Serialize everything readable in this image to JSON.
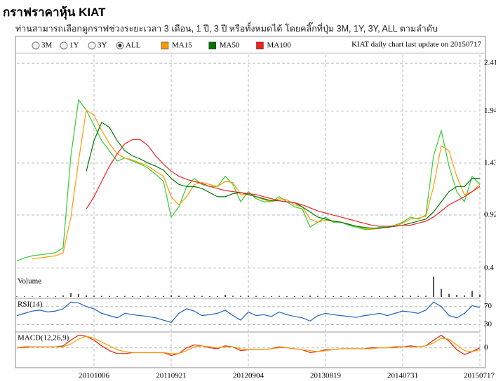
{
  "header": {
    "title": "กราฟราคาหุ้น KIAT",
    "subtitle": "ท่านสามารถเลือกดูกราฟช่วงระยะเวลา 3 เดือน, 1 ปี, 3 ปี หรือทั้งหมดได้ โดยคลิ๊กที่ปุ่ม 3M, 1Y, 3Y, ALL ตามลำดับ"
  },
  "controls": {
    "ranges": [
      {
        "label": "3M",
        "checked": false
      },
      {
        "label": "1Y",
        "checked": false
      },
      {
        "label": "3Y",
        "checked": false
      },
      {
        "label": "ALL",
        "checked": true
      }
    ],
    "update_note": "KIAT daily chart last update on 20150717"
  },
  "chart_data": [
    {
      "type": "line",
      "ylim": [
        0.35,
        2.48
      ],
      "yticks": [
        2.41,
        1.94,
        1.43,
        0.92,
        0.4
      ],
      "grid": true,
      "series": [
        {
          "color": "#33cc33",
          "values": [
            0.47,
            0.5,
            0.52,
            0.53,
            0.54,
            0.55,
            0.6,
            1.5,
            2.05,
            1.95,
            1.8,
            1.65,
            1.55,
            1.45,
            1.48,
            1.45,
            1.42,
            1.38,
            1.32,
            1.25,
            0.9,
            1.0,
            1.2,
            1.28,
            1.22,
            1.2,
            1.2,
            1.3,
            1.22,
            1.05,
            1.15,
            1.08,
            1.05,
            1.05,
            1.1,
            1.05,
            1.0,
            0.98,
            0.8,
            0.85,
            0.9,
            0.85,
            0.85,
            0.82,
            0.8,
            0.78,
            0.78,
            0.8,
            0.8,
            0.82,
            0.85,
            0.9,
            0.88,
            0.92,
            1.5,
            1.75,
            1.4,
            1.15,
            1.05,
            1.3,
            1.22
          ]
        },
        {
          "name": "MA15",
          "color": "#ff9900",
          "values": [
            null,
            null,
            0.49,
            0.5,
            0.51,
            0.52,
            0.55,
            0.9,
            1.45,
            1.95,
            1.9,
            1.75,
            1.62,
            1.52,
            1.48,
            1.46,
            1.43,
            1.4,
            1.35,
            1.3,
            1.1,
            1.02,
            1.1,
            1.22,
            1.24,
            1.22,
            1.2,
            1.25,
            1.24,
            1.12,
            1.12,
            1.1,
            1.07,
            1.05,
            1.08,
            1.07,
            1.02,
            1.0,
            0.88,
            0.85,
            0.87,
            0.86,
            0.85,
            0.83,
            0.81,
            0.79,
            0.78,
            0.79,
            0.8,
            0.81,
            0.84,
            0.88,
            0.89,
            0.91,
            1.2,
            1.6,
            1.55,
            1.3,
            1.12,
            1.15,
            1.22
          ]
        },
        {
          "name": "MA50",
          "color": "#007700",
          "values": [
            null,
            null,
            null,
            null,
            null,
            null,
            null,
            null,
            null,
            1.35,
            1.65,
            1.83,
            1.78,
            1.65,
            1.55,
            1.5,
            1.47,
            1.43,
            1.4,
            1.36,
            1.28,
            1.22,
            1.2,
            1.2,
            1.18,
            1.14,
            1.1,
            1.1,
            1.13,
            1.14,
            1.12,
            1.1,
            1.08,
            1.06,
            1.06,
            1.05,
            1.04,
            1.0,
            0.95,
            0.9,
            0.88,
            0.86,
            0.85,
            0.83,
            0.81,
            0.8,
            0.79,
            0.79,
            0.8,
            0.81,
            0.82,
            0.84,
            0.86,
            0.88,
            0.95,
            1.05,
            1.15,
            1.2,
            1.2,
            1.28,
            1.28
          ]
        },
        {
          "name": "MA100",
          "color": "#ee2222",
          "values": [
            null,
            null,
            null,
            null,
            null,
            null,
            null,
            null,
            null,
            0.98,
            1.1,
            1.25,
            1.4,
            1.52,
            1.62,
            1.66,
            1.66,
            1.6,
            1.5,
            1.42,
            1.35,
            1.3,
            1.27,
            1.25,
            1.23,
            1.2,
            1.18,
            1.16,
            1.15,
            1.14,
            1.13,
            1.12,
            1.1,
            1.08,
            1.06,
            1.05,
            1.04,
            1.02,
            0.99,
            0.96,
            0.94,
            0.92,
            0.9,
            0.88,
            0.86,
            0.84,
            0.82,
            0.81,
            0.81,
            0.81,
            0.82,
            0.82,
            0.84,
            0.86,
            0.9,
            0.96,
            1.02,
            1.06,
            1.1,
            1.15,
            1.2
          ]
        }
      ]
    },
    {
      "type": "bar",
      "title": "Volume",
      "color": "#555555",
      "ylim": [
        0,
        100
      ],
      "values": [
        3,
        4,
        3,
        4,
        3,
        4,
        8,
        20,
        15,
        8,
        6,
        5,
        5,
        4,
        5,
        4,
        4,
        5,
        4,
        5,
        8,
        6,
        5,
        6,
        5,
        4,
        4,
        10,
        6,
        5,
        6,
        5,
        4,
        4,
        5,
        4,
        4,
        5,
        7,
        5,
        5,
        4,
        4,
        4,
        3,
        4,
        3,
        4,
        4,
        5,
        5,
        6,
        5,
        6,
        100,
        40,
        15,
        10,
        8,
        30,
        12
      ]
    },
    {
      "type": "line",
      "title": "RSI(14)",
      "ylim": [
        20,
        85
      ],
      "yticks": [
        70,
        30
      ],
      "grid": true,
      "series": [
        {
          "color": "#1f5fbf",
          "values": [
            50,
            55,
            60,
            62,
            58,
            60,
            65,
            80,
            78,
            70,
            65,
            55,
            50,
            45,
            55,
            52,
            50,
            48,
            45,
            40,
            35,
            55,
            65,
            60,
            50,
            52,
            55,
            62,
            50,
            40,
            58,
            50,
            52,
            48,
            58,
            52,
            48,
            45,
            38,
            50,
            55,
            52,
            50,
            48,
            46,
            50,
            52,
            55,
            50,
            55,
            60,
            58,
            55,
            62,
            80,
            70,
            50,
            45,
            55,
            72,
            68
          ]
        }
      ]
    },
    {
      "type": "line",
      "title": "MACD(12,26,9)",
      "ylim": [
        -0.2,
        0.15
      ],
      "yticks": [
        0
      ],
      "grid": true,
      "categories": [
        null,
        null,
        null,
        null,
        null,
        null,
        null,
        null,
        null,
        null,
        "20101006",
        null,
        null,
        null,
        null,
        null,
        null,
        null,
        null,
        null,
        "20110921",
        null,
        null,
        null,
        null,
        null,
        null,
        null,
        null,
        null,
        "20120904",
        null,
        null,
        null,
        null,
        null,
        null,
        null,
        null,
        null,
        "20130819",
        null,
        null,
        null,
        null,
        null,
        null,
        null,
        null,
        null,
        "20140731",
        null,
        null,
        null,
        null,
        null,
        null,
        null,
        null,
        null,
        "20150717"
      ],
      "series": [
        {
          "color": "#dd2200",
          "values": [
            0,
            0.01,
            0.01,
            0.01,
            0.01,
            0.01,
            0.02,
            0.08,
            0.13,
            0.12,
            0.08,
            0.02,
            -0.03,
            -0.06,
            -0.06,
            -0.05,
            -0.05,
            -0.05,
            -0.05,
            -0.05,
            -0.08,
            -0.06,
            0,
            0.03,
            0.02,
            0,
            -0.01,
            0.02,
            0.01,
            -0.03,
            -0.02,
            -0.02,
            -0.02,
            -0.01,
            0.01,
            0,
            -0.01,
            -0.02,
            -0.05,
            -0.04,
            -0.02,
            -0.02,
            -0.01,
            -0.01,
            -0.01,
            -0.01,
            0,
            0,
            0,
            0.01,
            0.01,
            0.02,
            0.01,
            0.02,
            0.08,
            0.13,
            0.07,
            -0.02,
            -0.07,
            -0.04,
            0
          ]
        },
        {
          "color": "#ff9900",
          "values": [
            0,
            0,
            0.01,
            0.01,
            0.01,
            0.01,
            0.01,
            0.04,
            0.09,
            0.12,
            0.1,
            0.06,
            0.02,
            -0.02,
            -0.04,
            -0.05,
            -0.05,
            -0.05,
            -0.05,
            -0.05,
            -0.06,
            -0.06,
            -0.03,
            0.01,
            0.02,
            0.01,
            0,
            0.01,
            0.01,
            -0.01,
            -0.02,
            -0.02,
            -0.02,
            -0.01,
            0,
            0,
            -0.01,
            -0.02,
            -0.03,
            -0.04,
            -0.03,
            -0.02,
            -0.01,
            -0.01,
            -0.01,
            -0.01,
            -0.01,
            0,
            0,
            0,
            0.01,
            0.01,
            0.01,
            0.02,
            0.05,
            0.1,
            0.09,
            0.03,
            -0.03,
            -0.04,
            -0.02
          ]
        }
      ]
    }
  ]
}
